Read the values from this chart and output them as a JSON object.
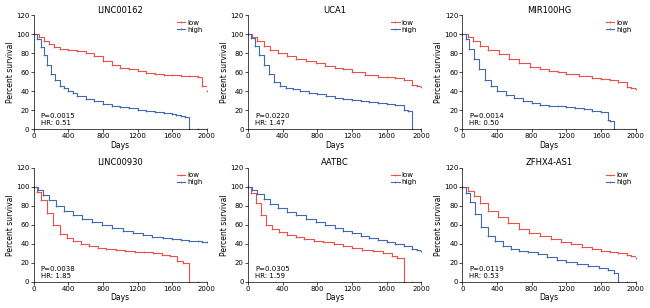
{
  "plots": [
    {
      "title": "LINC00162",
      "pvalue": "P=0.0015",
      "hr": "HR: 0.51",
      "low_color": "#e8524a",
      "high_color": "#4169b0",
      "low_steps_x": [
        0,
        60,
        120,
        180,
        240,
        300,
        400,
        500,
        600,
        700,
        800,
        900,
        1000,
        1100,
        1200,
        1300,
        1400,
        1500,
        1600,
        1700,
        1800,
        1900,
        1950,
        2000
      ],
      "low_steps_y": [
        100,
        97,
        93,
        90,
        87,
        85,
        83,
        82,
        80,
        77,
        72,
        68,
        65,
        63,
        61,
        59,
        58,
        57,
        57,
        56,
        56,
        55,
        46,
        40
      ],
      "high_steps_x": [
        0,
        40,
        80,
        120,
        160,
        200,
        250,
        300,
        350,
        400,
        450,
        500,
        600,
        700,
        800,
        900,
        1000,
        1100,
        1200,
        1300,
        1400,
        1500,
        1600,
        1650,
        1700,
        1750,
        1800,
        1900,
        2000
      ],
      "high_steps_y": [
        100,
        95,
        87,
        78,
        68,
        58,
        52,
        46,
        43,
        40,
        38,
        35,
        32,
        30,
        27,
        25,
        23,
        22,
        20,
        19,
        18,
        17,
        16,
        15,
        14,
        13,
        0,
        0,
        0
      ]
    },
    {
      "title": "UCA1",
      "pvalue": "P=0.0220",
      "hr": "HR: 1.47",
      "low_color": "#e8524a",
      "high_color": "#4169b0",
      "low_steps_x": [
        0,
        50,
        100,
        180,
        260,
        350,
        450,
        560,
        670,
        780,
        890,
        1000,
        1100,
        1200,
        1350,
        1500,
        1600,
        1700,
        1800,
        1900,
        1950,
        2000
      ],
      "low_steps_y": [
        100,
        97,
        93,
        88,
        84,
        80,
        77,
        74,
        72,
        70,
        67,
        65,
        63,
        60,
        57,
        55,
        55,
        54,
        52,
        47,
        46,
        45
      ],
      "high_steps_x": [
        0,
        40,
        80,
        130,
        180,
        240,
        300,
        370,
        440,
        520,
        600,
        700,
        800,
        900,
        1000,
        1100,
        1200,
        1300,
        1400,
        1500,
        1600,
        1700,
        1800,
        1850,
        1900,
        2000
      ],
      "high_steps_y": [
        100,
        96,
        88,
        78,
        68,
        58,
        50,
        46,
        43,
        42,
        40,
        38,
        37,
        35,
        33,
        32,
        31,
        30,
        29,
        28,
        27,
        26,
        20,
        19,
        0,
        0
      ]
    },
    {
      "title": "MIR100HG",
      "pvalue": "P=0.0014",
      "hr": "HR: 0.50",
      "low_color": "#e8524a",
      "high_color": "#4169b0",
      "low_steps_x": [
        0,
        60,
        120,
        200,
        300,
        420,
        540,
        660,
        780,
        900,
        1000,
        1100,
        1200,
        1350,
        1500,
        1600,
        1700,
        1800,
        1900,
        1950,
        2000
      ],
      "low_steps_y": [
        100,
        97,
        93,
        88,
        83,
        79,
        74,
        70,
        66,
        63,
        61,
        60,
        58,
        56,
        54,
        53,
        52,
        50,
        44,
        43,
        42
      ],
      "high_steps_x": [
        0,
        40,
        80,
        130,
        190,
        260,
        330,
        400,
        500,
        600,
        700,
        800,
        900,
        1000,
        1100,
        1200,
        1300,
        1400,
        1500,
        1600,
        1680,
        1700,
        1750,
        2000
      ],
      "high_steps_y": [
        100,
        95,
        85,
        74,
        63,
        52,
        46,
        40,
        36,
        33,
        30,
        28,
        26,
        25,
        24,
        23,
        22,
        21,
        19,
        18,
        10,
        9,
        0,
        0
      ]
    },
    {
      "title": "LINC00930",
      "pvalue": "P=0.0038",
      "hr": "HR: 1.85",
      "low_color": "#e8524a",
      "high_color": "#4169b0",
      "low_steps_x": [
        0,
        40,
        90,
        150,
        220,
        300,
        380,
        460,
        550,
        640,
        740,
        840,
        950,
        1060,
        1170,
        1280,
        1380,
        1480,
        1570,
        1660,
        1720,
        1800,
        1900,
        2000
      ],
      "low_steps_y": [
        100,
        95,
        86,
        73,
        60,
        50,
        46,
        43,
        40,
        38,
        36,
        35,
        34,
        33,
        32,
        31,
        30,
        28,
        27,
        22,
        20,
        0,
        0,
        0
      ],
      "high_steps_x": [
        0,
        50,
        110,
        180,
        260,
        350,
        450,
        560,
        670,
        790,
        910,
        1030,
        1150,
        1260,
        1370,
        1490,
        1600,
        1700,
        1800,
        1900,
        1950,
        2000
      ],
      "high_steps_y": [
        100,
        97,
        92,
        86,
        80,
        75,
        70,
        66,
        63,
        60,
        57,
        54,
        51,
        49,
        47,
        46,
        45,
        44,
        43,
        43,
        42,
        42
      ]
    },
    {
      "title": "AATBC",
      "pvalue": "P=0.0305",
      "hr": "HR: 1.59",
      "low_color": "#e8524a",
      "high_color": "#4169b0",
      "low_steps_x": [
        0,
        40,
        90,
        150,
        210,
        280,
        360,
        450,
        550,
        650,
        760,
        870,
        990,
        1100,
        1200,
        1320,
        1440,
        1560,
        1660,
        1720,
        1800,
        1900,
        2000
      ],
      "low_steps_y": [
        100,
        94,
        83,
        70,
        60,
        56,
        53,
        49,
        47,
        45,
        43,
        42,
        40,
        38,
        36,
        34,
        33,
        30,
        27,
        25,
        0,
        0,
        0
      ],
      "high_steps_x": [
        0,
        50,
        110,
        180,
        260,
        350,
        450,
        560,
        670,
        780,
        890,
        1000,
        1100,
        1200,
        1300,
        1400,
        1500,
        1600,
        1700,
        1800,
        1900,
        1950,
        2000
      ],
      "high_steps_y": [
        100,
        97,
        93,
        87,
        82,
        78,
        74,
        70,
        66,
        63,
        60,
        57,
        54,
        51,
        48,
        46,
        44,
        42,
        40,
        38,
        35,
        34,
        33
      ]
    },
    {
      "title": "ZFHX4-AS1",
      "pvalue": "P=0.0119",
      "hr": "HR: 0.53",
      "low_color": "#e8524a",
      "high_color": "#4169b0",
      "low_steps_x": [
        0,
        60,
        130,
        210,
        300,
        410,
        530,
        650,
        770,
        900,
        1020,
        1140,
        1260,
        1380,
        1500,
        1600,
        1700,
        1800,
        1900,
        1950,
        2000
      ],
      "low_steps_y": [
        100,
        96,
        90,
        83,
        75,
        68,
        62,
        56,
        52,
        48,
        45,
        42,
        40,
        37,
        35,
        33,
        32,
        30,
        28,
        27,
        25
      ],
      "high_steps_x": [
        0,
        40,
        90,
        150,
        220,
        300,
        380,
        470,
        560,
        660,
        760,
        870,
        980,
        1090,
        1200,
        1320,
        1450,
        1580,
        1680,
        1750,
        1800,
        1900,
        2000
      ],
      "high_steps_y": [
        100,
        94,
        84,
        71,
        58,
        48,
        43,
        38,
        35,
        33,
        31,
        29,
        26,
        23,
        21,
        19,
        17,
        15,
        12,
        9,
        0,
        0,
        0
      ]
    }
  ],
  "ylim": [
    0,
    120
  ],
  "xlim": [
    0,
    2000
  ],
  "yticks": [
    0,
    20,
    40,
    60,
    80,
    100,
    120
  ],
  "xticks": [
    0,
    400,
    800,
    1200,
    1600,
    2000
  ],
  "ylabel": "Percent survival",
  "xlabel": "Days",
  "tick_fontsize": 5.0,
  "label_fontsize": 5.5,
  "title_fontsize": 6.0,
  "annot_fontsize": 5.0,
  "legend_fontsize": 5.0,
  "line_width": 0.8,
  "marker_size": 1.2,
  "background_color": "#ffffff"
}
